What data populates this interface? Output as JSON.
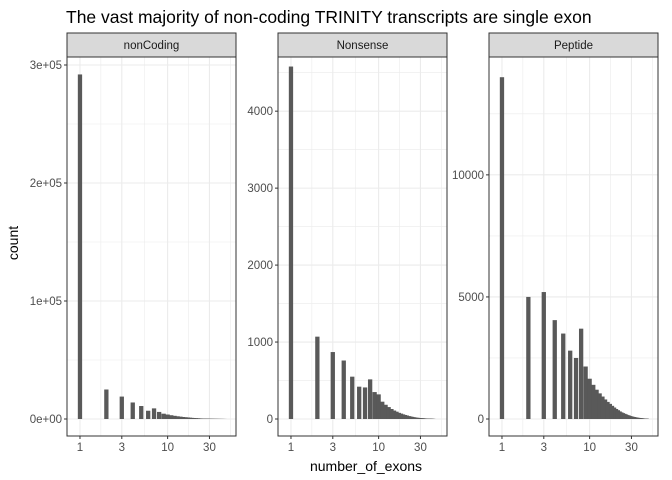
{
  "chart_data": {
    "type": "bar",
    "title": "The vast majority of non-coding TRINITY transcripts are single exon",
    "xlabel": "number_of_exons",
    "ylabel": "count",
    "x_scale": "log10",
    "x_ticks": [
      1,
      3,
      10,
      30
    ],
    "x_tick_labels": [
      "1",
      "3",
      "10",
      "30"
    ],
    "grid": true,
    "colors": {
      "bar": "#595959",
      "strip": "#d9d9d9",
      "grid": "#ebebeb",
      "border": "#333333"
    },
    "panels": [
      {
        "name": "nonCoding",
        "ylim": [
          0,
          300000
        ],
        "y_ticks": [
          0,
          100000,
          200000,
          300000
        ],
        "y_tick_labels": [
          "0e+00",
          "1e+05",
          "2e+05",
          "3e+05"
        ],
        "x": [
          1,
          2,
          3,
          4,
          5,
          6,
          7,
          8,
          9,
          10,
          11,
          12,
          13,
          14,
          15,
          16,
          17,
          18,
          19,
          20,
          21,
          22,
          23,
          24,
          25,
          26,
          27,
          28,
          29,
          30,
          31,
          32,
          33,
          34,
          35,
          36,
          37,
          38,
          39,
          40,
          41,
          42,
          43,
          44,
          45
        ],
        "values": [
          292000,
          25000,
          19000,
          14000,
          11000,
          7000,
          9000,
          6000,
          4500,
          3800,
          3200,
          2700,
          2300,
          2000,
          1700,
          1500,
          1300,
          1100,
          950,
          820,
          700,
          600,
          520,
          450,
          390,
          340,
          300,
          260,
          230,
          200,
          170,
          150,
          130,
          115,
          100,
          90,
          80,
          70,
          60,
          52,
          45,
          40,
          35,
          30,
          25
        ]
      },
      {
        "name": "Nonsense",
        "ylim": [
          0,
          4600
        ],
        "y_ticks": [
          0,
          1000,
          2000,
          3000,
          4000
        ],
        "y_tick_labels": [
          "0",
          "1000",
          "2000",
          "3000",
          "4000"
        ],
        "x": [
          1,
          2,
          3,
          4,
          5,
          6,
          7,
          8,
          9,
          10,
          11,
          12,
          13,
          14,
          15,
          16,
          17,
          18,
          19,
          20,
          21,
          22,
          23,
          24,
          25,
          26,
          27,
          28,
          29,
          30,
          31,
          32,
          33,
          34,
          35,
          36,
          37,
          38,
          39,
          40,
          41,
          42
        ],
        "values": [
          4580,
          1070,
          870,
          760,
          550,
          420,
          410,
          515,
          350,
          320,
          225,
          185,
          155,
          130,
          110,
          95,
          80,
          70,
          60,
          52,
          45,
          38,
          33,
          28,
          24,
          20,
          17,
          15,
          13,
          11,
          10,
          9,
          8,
          7,
          6,
          5,
          4,
          4,
          3,
          3,
          2,
          2
        ]
      },
      {
        "name": "Peptide",
        "ylim": [
          0,
          14500
        ],
        "y_ticks": [
          0,
          5000,
          10000
        ],
        "y_tick_labels": [
          "0",
          "5000",
          "10000"
        ],
        "x": [
          1,
          2,
          3,
          4,
          5,
          6,
          7,
          8,
          9,
          10,
          11,
          12,
          13,
          14,
          15,
          16,
          17,
          18,
          19,
          20,
          21,
          22,
          23,
          24,
          25,
          26,
          27,
          28,
          29,
          30,
          31,
          32,
          33,
          34,
          35,
          36,
          37,
          38,
          39,
          40,
          41,
          42,
          43,
          44,
          45
        ],
        "values": [
          14000,
          5000,
          5200,
          4050,
          3500,
          2800,
          2500,
          3700,
          2150,
          1650,
          1400,
          1200,
          1050,
          920,
          800,
          700,
          620,
          540,
          470,
          410,
          360,
          310,
          270,
          240,
          210,
          185,
          160,
          140,
          120,
          105,
          90,
          80,
          70,
          60,
          52,
          45,
          40,
          35,
          30,
          26,
          22,
          19,
          16,
          14,
          12
        ]
      }
    ]
  }
}
